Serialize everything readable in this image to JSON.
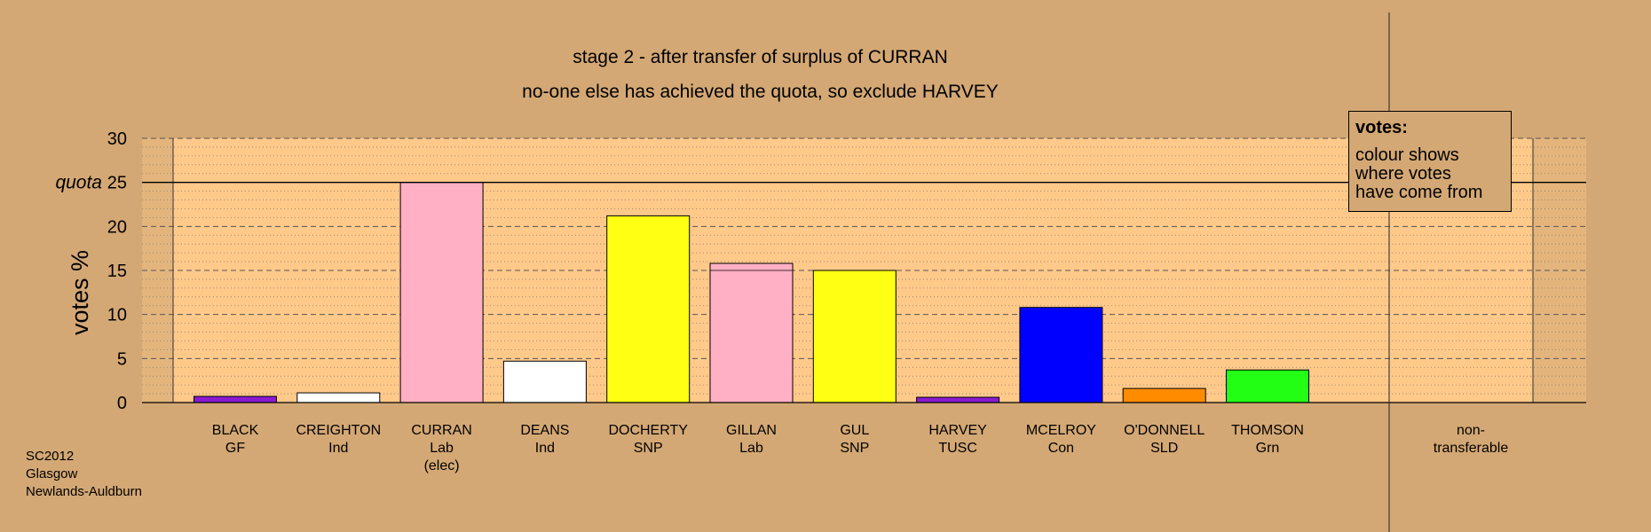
{
  "title_line1": "stage 2 - after transfer of surplus of CURRAN",
  "title_line2": "no-one else has achieved the quota, so exclude HARVEY",
  "legend": {
    "title": "votes:",
    "body": "colour shows\nwhere votes\nhave come from"
  },
  "footer": [
    "SC2012",
    "Glasgow",
    "Newlands-Auldburn"
  ],
  "chart_data": {
    "type": "bar",
    "ylabel": "votes %",
    "ylim": [
      0,
      30
    ],
    "yticks": [
      0,
      5,
      10,
      15,
      20,
      25,
      30
    ],
    "quota": {
      "value": 25,
      "label": "quota"
    },
    "grid": "dashed major every 5, dotted minor every 1",
    "categories": [
      {
        "name": "BLACK",
        "sub": [
          "GF"
        ],
        "value": 0.7,
        "color": "#8a1ad1"
      },
      {
        "name": "CREIGHTON",
        "sub": [
          "Ind"
        ],
        "value": 1.1,
        "color": "#ffffff"
      },
      {
        "name": "CURRAN",
        "sub": [
          "Lab",
          "(elec)"
        ],
        "value": 25.0,
        "color": "#ffb0c4"
      },
      {
        "name": "DEANS",
        "sub": [
          "Ind"
        ],
        "value": 4.7,
        "color": "#ffffff"
      },
      {
        "name": "DOCHERTY",
        "sub": [
          "SNP"
        ],
        "value": 21.2,
        "color": "#ffff14"
      },
      {
        "name": "GILLAN",
        "sub": [
          "Lab"
        ],
        "value": 15.8,
        "base": 15.0,
        "color": "#ffb0c4",
        "transfer_color": "#ffb0c4"
      },
      {
        "name": "GUL",
        "sub": [
          "SNP"
        ],
        "value": 15.0,
        "color": "#ffff14"
      },
      {
        "name": "HARVEY",
        "sub": [
          "TUSC"
        ],
        "value": 0.6,
        "color": "#8a1ad1"
      },
      {
        "name": "MCELROY",
        "sub": [
          "Con"
        ],
        "value": 10.8,
        "color": "#0000ff"
      },
      {
        "name": "O'DONNELL",
        "sub": [
          "SLD"
        ],
        "value": 1.6,
        "color": "#ff8c00"
      },
      {
        "name": "THOMSON",
        "sub": [
          "Grn"
        ],
        "value": 3.7,
        "color": "#22ff14"
      },
      {
        "name": "non-",
        "sub": [
          "transferable"
        ],
        "value": 0,
        "color": "#ffffff",
        "nontransferable": true
      }
    ]
  }
}
